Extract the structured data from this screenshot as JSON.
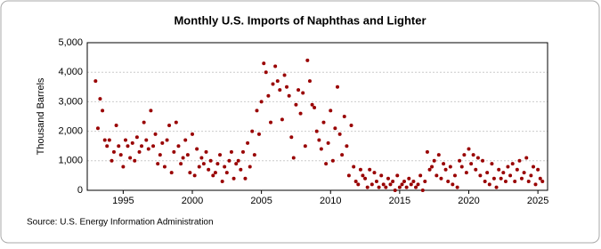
{
  "chart_data": {
    "type": "scatter",
    "title": "Monthly U.S. Imports of Naphthas and Lighter",
    "y_label": "Thousand Barrels",
    "source": "Source: U.S. Energy Information Administration",
    "color": "#990000",
    "grid": true,
    "xlim": [
      1992.4,
      2025.7
    ],
    "xticks": [
      1995,
      2000,
      2005,
      2010,
      2015,
      2020,
      2025
    ],
    "ylim": [
      0,
      5000
    ],
    "yticks": [
      0,
      {
        "value": 1000,
        "label": "1,000"
      },
      {
        "value": 2000,
        "label": "2,000"
      },
      {
        "value": 3000,
        "label": "3,000"
      },
      {
        "value": 4000,
        "label": "4,000"
      },
      {
        "value": 5000,
        "label": "5,000"
      }
    ],
    "x": [
      1993.0,
      1993.17,
      1993.33,
      1993.5,
      1993.67,
      1993.83,
      1994.0,
      1994.17,
      1994.33,
      1994.5,
      1994.67,
      1994.83,
      1995.0,
      1995.17,
      1995.33,
      1995.5,
      1995.67,
      1995.83,
      1996.0,
      1996.17,
      1996.33,
      1996.5,
      1996.67,
      1996.83,
      1997.0,
      1997.17,
      1997.33,
      1997.5,
      1997.67,
      1997.83,
      1998.0,
      1998.17,
      1998.33,
      1998.5,
      1998.67,
      1998.83,
      1999.0,
      1999.17,
      1999.33,
      1999.5,
      1999.67,
      1999.83,
      2000.0,
      2000.17,
      2000.33,
      2000.5,
      2000.67,
      2000.83,
      2001.0,
      2001.17,
      2001.33,
      2001.5,
      2001.67,
      2001.83,
      2002.0,
      2002.17,
      2002.33,
      2002.5,
      2002.67,
      2002.83,
      2003.0,
      2003.17,
      2003.33,
      2003.5,
      2003.67,
      2003.83,
      2004.0,
      2004.17,
      2004.33,
      2004.5,
      2004.67,
      2004.83,
      2005.0,
      2005.17,
      2005.33,
      2005.5,
      2005.67,
      2005.83,
      2006.0,
      2006.17,
      2006.33,
      2006.5,
      2006.67,
      2006.83,
      2007.0,
      2007.17,
      2007.33,
      2007.5,
      2007.67,
      2007.83,
      2008.0,
      2008.17,
      2008.33,
      2008.5,
      2008.67,
      2008.83,
      2009.0,
      2009.17,
      2009.33,
      2009.5,
      2009.67,
      2009.83,
      2010.0,
      2010.17,
      2010.33,
      2010.5,
      2010.67,
      2010.83,
      2011.0,
      2011.17,
      2011.33,
      2011.5,
      2011.67,
      2011.83,
      2012.0,
      2012.17,
      2012.33,
      2012.5,
      2012.67,
      2012.83,
      2013.0,
      2013.17,
      2013.33,
      2013.5,
      2013.67,
      2013.83,
      2014.0,
      2014.17,
      2014.33,
      2014.5,
      2014.67,
      2014.83,
      2015.0,
      2015.17,
      2015.33,
      2015.5,
      2015.67,
      2015.83,
      2016.0,
      2016.17,
      2016.33,
      2016.5,
      2016.67,
      2016.83,
      2017.0,
      2017.17,
      2017.33,
      2017.5,
      2017.67,
      2017.83,
      2018.0,
      2018.17,
      2018.33,
      2018.5,
      2018.67,
      2018.83,
      2019.0,
      2019.17,
      2019.33,
      2019.5,
      2019.67,
      2019.83,
      2020.0,
      2020.17,
      2020.33,
      2020.5,
      2020.67,
      2020.83,
      2021.0,
      2021.17,
      2021.33,
      2021.5,
      2021.67,
      2021.83,
      2022.0,
      2022.17,
      2022.33,
      2022.5,
      2022.67,
      2022.83,
      2023.0,
      2023.17,
      2023.33,
      2023.5,
      2023.67,
      2023.83,
      2024.0,
      2024.17,
      2024.33,
      2024.5,
      2024.67,
      2024.83,
      2025.0,
      2025.17,
      2025.33
    ],
    "values": [
      3700,
      2100,
      3100,
      2700,
      1700,
      1500,
      1700,
      1000,
      1300,
      2200,
      1500,
      1200,
      800,
      1700,
      1500,
      1100,
      1600,
      1000,
      1800,
      1300,
      1500,
      2300,
      1700,
      1400,
      2700,
      1500,
      1900,
      900,
      1200,
      1600,
      800,
      1700,
      2200,
      600,
      1300,
      2300,
      1500,
      900,
      1100,
      1700,
      1200,
      600,
      1900,
      500,
      1400,
      800,
      1100,
      900,
      1300,
      700,
      1000,
      500,
      600,
      900,
      1200,
      300,
      800,
      600,
      1000,
      1300,
      400,
      900,
      1000,
      700,
      1300,
      400,
      1600,
      800,
      2000,
      1200,
      2700,
      1900,
      3000,
      4300,
      4000,
      3200,
      2300,
      3600,
      4200,
      3700,
      3400,
      2400,
      3900,
      3500,
      3200,
      1800,
      1100,
      2900,
      3400,
      2600,
      3300,
      1500,
      4400,
      3700,
      2900,
      2800,
      2000,
      1700,
      1400,
      2300,
      900,
      1600,
      2700,
      1000,
      2100,
      3500,
      1900,
      1200,
      2500,
      1500,
      500,
      2200,
      800,
      300,
      200,
      700,
      500,
      400,
      100,
      700,
      200,
      600,
      300,
      100,
      500,
      200,
      100,
      400,
      200,
      300,
      0,
      500,
      100,
      200,
      300,
      100,
      400,
      200,
      300,
      100,
      200,
      500,
      0,
      300,
      1300,
      700,
      800,
      1000,
      500,
      1200,
      400,
      900,
      700,
      300,
      800,
      200,
      500,
      100,
      1000,
      800,
      1200,
      600,
      1400,
      900,
      1200,
      700,
      1100,
      500,
      1000,
      300,
      600,
      200,
      900,
      400,
      100,
      700,
      400,
      600,
      300,
      800,
      500,
      900,
      300,
      700,
      1000,
      400,
      600,
      1100,
      300,
      500,
      800,
      200,
      700,
      400,
      300
    ]
  }
}
